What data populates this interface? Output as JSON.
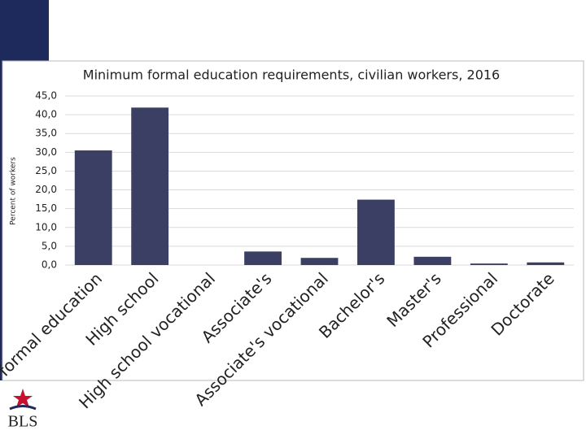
{
  "logo": "BLS",
  "chart_data": {
    "type": "bar",
    "title": "Minimum formal education requirements, civilian workers, 2016",
    "y_label": "Percent of workers",
    "categories": [
      "No formal education",
      "High school",
      "High school vocational",
      "Associate's",
      "Associate's vocational",
      "Bachelor's",
      "Master's",
      "Professional",
      "Doctorate"
    ],
    "values": [
      30.5,
      41.9,
      0,
      3.6,
      1.9,
      17.4,
      2.2,
      0.4,
      0.7
    ],
    "color": "#3c3f64",
    "ylim": [
      0,
      45
    ],
    "yticks": [
      {
        "value": 0,
        "label": "0,0"
      },
      {
        "value": 5,
        "label": "5,0"
      },
      {
        "value": 10,
        "label": "10,0"
      },
      {
        "value": 15,
        "label": "15,0"
      },
      {
        "value": 20,
        "label": "20,0"
      },
      {
        "value": 25,
        "label": "25,0"
      },
      {
        "value": 30,
        "label": "30,0"
      },
      {
        "value": 35,
        "label": "35,0"
      },
      {
        "value": 40,
        "label": "40,0"
      },
      {
        "value": 45,
        "label": "45,0"
      }
    ],
    "grid": true
  }
}
